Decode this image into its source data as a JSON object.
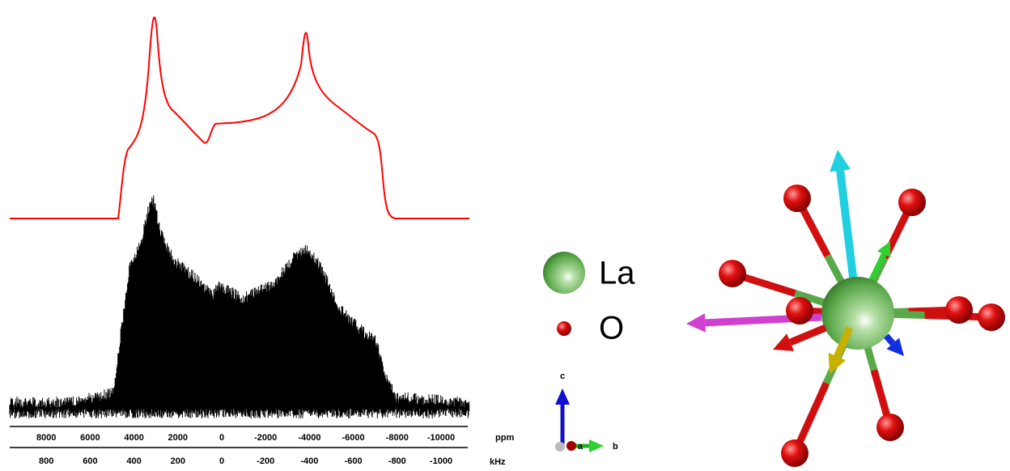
{
  "axes": [
    {
      "unit": "ppm",
      "ticks": [
        8000,
        6000,
        4000,
        2000,
        0,
        -2000,
        -4000,
        -6000,
        -8000,
        -10000
      ]
    },
    {
      "unit": "kHz",
      "ticks": [
        800,
        600,
        400,
        200,
        0,
        -200,
        -400,
        -600,
        -800,
        -1000
      ]
    }
  ],
  "legend": [
    {
      "label": "La"
    },
    {
      "label": "O"
    }
  ],
  "triad": {
    "a": "a",
    "b": "b",
    "c": "c"
  }
}
